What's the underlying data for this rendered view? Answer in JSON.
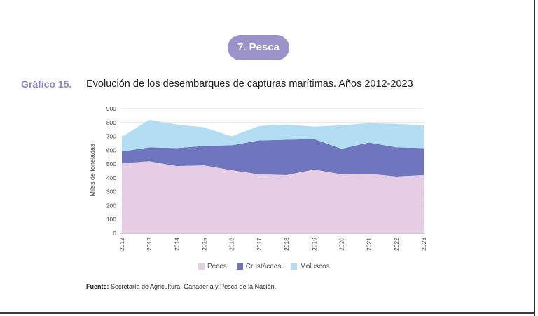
{
  "header": {
    "section_label": "7. Pesca",
    "figure_number": "Gráfico 15.",
    "figure_title": "Evolución de los desembarques de capturas marítimas. Años 2012-2023"
  },
  "source": {
    "label": "Fuente:",
    "text": "Secretaría de Agricultura, Ganadería y Pesca de la Nación."
  },
  "colors": {
    "peces": "#e6cde6",
    "crustaceos": "#6f76bd",
    "moluscos": "#b3ddf3",
    "badge": "#9b92c7",
    "figure_number": "#8b86bd"
  },
  "chart_data": {
    "type": "area",
    "stacked": true,
    "title": "Evolución de los desembarques de capturas marítimas. Años 2012-2023",
    "xlabel": "",
    "ylabel": "Miles de toneladas",
    "ylim": [
      0,
      900
    ],
    "yticks": [
      0,
      100,
      200,
      300,
      400,
      500,
      600,
      700,
      800,
      900
    ],
    "grid": true,
    "legend_position": "bottom",
    "categories": [
      "2012",
      "2013",
      "2014",
      "2015",
      "2016",
      "2017",
      "2018",
      "2019",
      "2020",
      "2021",
      "2022",
      "2023"
    ],
    "series": [
      {
        "name": "Peces",
        "values": [
          505,
          520,
          485,
          490,
          455,
          425,
          420,
          460,
          425,
          430,
          410,
          420
        ]
      },
      {
        "name": "Crustáceos",
        "values": [
          85,
          100,
          130,
          140,
          180,
          245,
          255,
          220,
          185,
          225,
          210,
          195
        ]
      },
      {
        "name": "Moluscos",
        "values": [
          105,
          200,
          170,
          135,
          65,
          105,
          110,
          90,
          170,
          140,
          170,
          165
        ]
      }
    ]
  }
}
